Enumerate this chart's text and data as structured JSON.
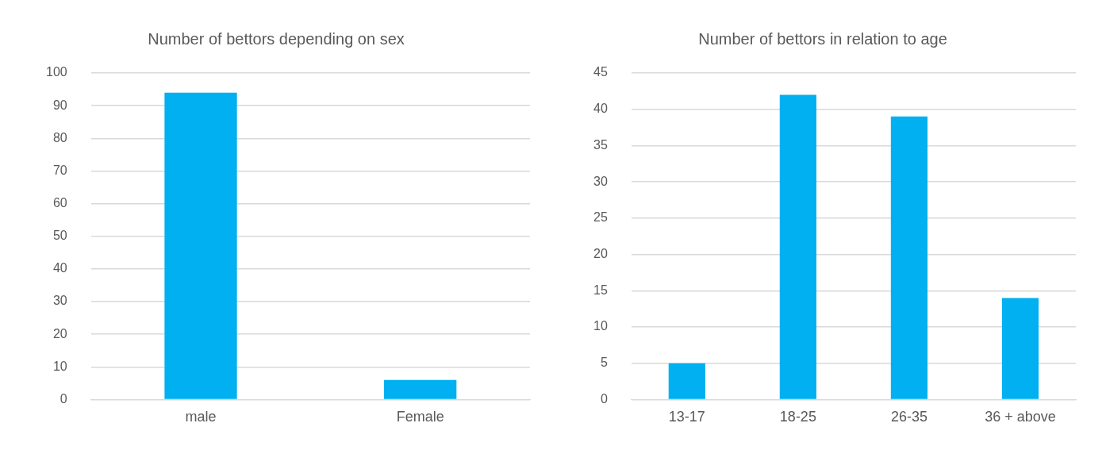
{
  "chart_data": [
    {
      "type": "bar",
      "title": "Number of bettors depending on sex",
      "categories": [
        "male",
        "Female"
      ],
      "values": [
        94,
        6
      ],
      "color": "#00b0f0",
      "ylim": [
        0,
        100
      ],
      "yticks": [
        0,
        10,
        20,
        30,
        40,
        50,
        60,
        70,
        80,
        90,
        100
      ],
      "grid": "y"
    },
    {
      "type": "bar",
      "title": "Number of bettors in relation to age",
      "categories": [
        "13-17",
        "18-25",
        "26-35",
        "36 + above"
      ],
      "values": [
        5,
        42,
        39,
        14
      ],
      "color": "#00b0f0",
      "ylim": [
        0,
        45
      ],
      "yticks": [
        0,
        5,
        10,
        15,
        20,
        25,
        30,
        35,
        40,
        45
      ],
      "grid": "y"
    }
  ]
}
